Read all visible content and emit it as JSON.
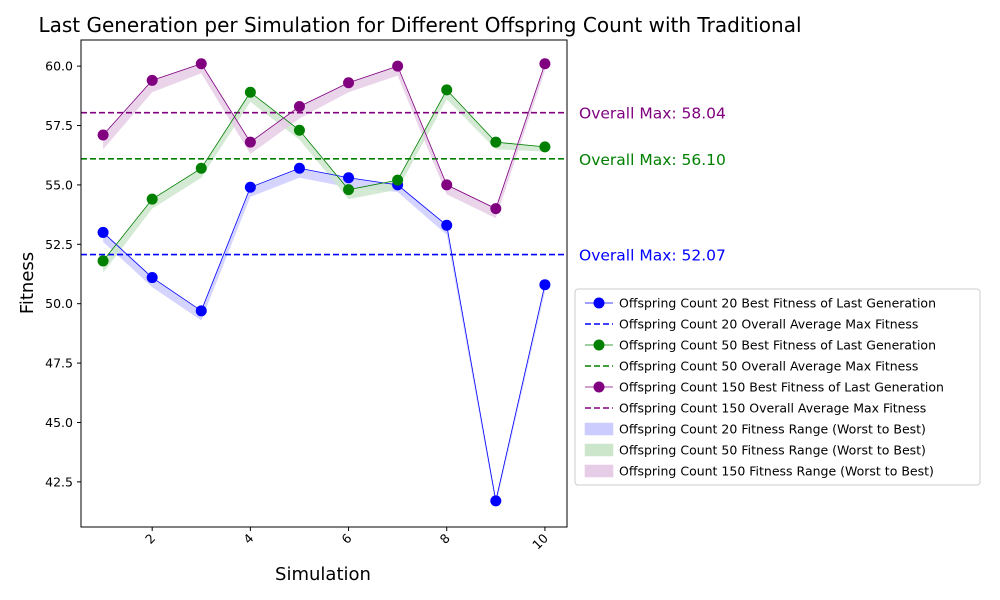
{
  "chart_data": {
    "type": "line",
    "title": "Last Generation per Simulation for Different Offspring Count with Traditional",
    "xlabel": "Simulation",
    "ylabel": "Fitness",
    "xlim": [
      0.55,
      10.45
    ],
    "ylim": [
      40.6,
      61.1
    ],
    "xticks": [
      2,
      4,
      6,
      8,
      10
    ],
    "yticks": [
      42.5,
      45.0,
      47.5,
      50.0,
      52.5,
      55.0,
      57.5,
      60.0
    ],
    "ytick_labels": [
      "42.5",
      "45.0",
      "47.5",
      "50.0",
      "52.5",
      "55.0",
      "57.5",
      "60.0"
    ],
    "grid": false,
    "legend_position": "right",
    "x": [
      1,
      2,
      3,
      4,
      5,
      6,
      7,
      8,
      9,
      10
    ],
    "series": [
      {
        "name": "Offspring Count 20 Best Fitness of Last Generation",
        "color": "#0000ff",
        "values": [
          53.0,
          51.1,
          49.7,
          54.9,
          55.7,
          55.3,
          55.0,
          53.3,
          41.7,
          50.8
        ],
        "range_low": [
          52.6,
          50.7,
          49.3,
          54.5,
          55.3,
          54.9,
          54.7,
          52.9,
          41.5,
          50.5
        ],
        "range_name": "Offspring Count 20 Fitness Range (Worst to Best)",
        "range_color": "#ccccff",
        "overall_max": 52.07,
        "overall_name": "Offspring Count 20 Overall Average Max Fitness",
        "overall_label": "Overall Max: 52.07"
      },
      {
        "name": "Offspring Count 50 Best Fitness of Last Generation",
        "color": "#008000",
        "values": [
          51.8,
          54.4,
          55.7,
          58.9,
          57.3,
          54.8,
          55.2,
          59.0,
          56.8,
          56.6
        ],
        "range_low": [
          51.3,
          54.0,
          55.3,
          58.5,
          56.9,
          54.4,
          54.8,
          58.6,
          56.5,
          56.4
        ],
        "range_name": "Offspring Count 50 Fitness Range (Worst to Best)",
        "range_color": "#cce6cc",
        "overall_max": 56.1,
        "overall_name": "Offspring Count 50 Overall Average Max Fitness",
        "overall_label": "Overall Max: 56.10"
      },
      {
        "name": "Offspring Count 150 Best Fitness of Last Generation",
        "color": "#800080",
        "values": [
          57.1,
          59.4,
          60.1,
          56.8,
          58.3,
          59.3,
          60.0,
          55.0,
          54.0,
          60.1
        ],
        "range_low": [
          56.5,
          58.9,
          59.7,
          56.3,
          57.8,
          58.9,
          59.6,
          54.6,
          53.6,
          59.8
        ],
        "range_name": "Offspring Count 150 Fitness Range (Worst to Best)",
        "range_color": "#e6cce6",
        "overall_max": 58.04,
        "overall_name": "Offspring Count 150 Overall Average Max Fitness",
        "overall_label": "Overall Max: 58.04"
      }
    ]
  }
}
